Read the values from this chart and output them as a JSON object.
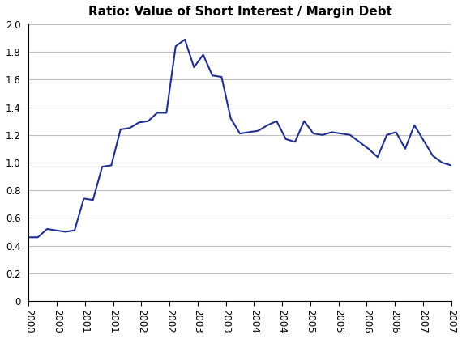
{
  "title": "Ratio: Value of Short Interest / Margin Debt",
  "line_color": "#1F2F8F",
  "background_color": "#FFFFFF",
  "grid_color": "#C0C0C0",
  "ylim": [
    0,
    2.0
  ],
  "yticks": [
    0,
    0.2,
    0.4,
    0.6,
    0.8,
    1.0,
    1.2,
    1.4,
    1.6,
    1.8,
    2.0
  ],
  "x_labels": [
    "2000",
    "2000",
    "2001",
    "2001",
    "2002",
    "2002",
    "2003",
    "2003",
    "2004",
    "2004",
    "2005",
    "2005",
    "2006",
    "2006",
    "2007",
    "2007"
  ],
  "xtick_positions": [
    0.0,
    0.5,
    1.0,
    1.5,
    2.0,
    2.5,
    3.0,
    3.5,
    4.0,
    4.5,
    5.0,
    5.5,
    6.0,
    6.5,
    7.0,
    7.5
  ],
  "xlim": [
    0,
    7.5
  ],
  "values": [
    0.46,
    0.46,
    0.52,
    0.51,
    0.5,
    0.51,
    0.74,
    0.73,
    0.97,
    0.98,
    1.24,
    1.25,
    1.29,
    1.3,
    1.36,
    1.36,
    1.84,
    1.89,
    1.69,
    1.78,
    1.63,
    1.62,
    1.32,
    1.21,
    1.22,
    1.23,
    1.27,
    1.3,
    1.17,
    1.15,
    1.3,
    1.21,
    1.2,
    1.22,
    1.21,
    1.2,
    1.15,
    1.1,
    1.04,
    1.2,
    1.22,
    1.1,
    1.27,
    1.16,
    1.05,
    1.0,
    0.98
  ]
}
